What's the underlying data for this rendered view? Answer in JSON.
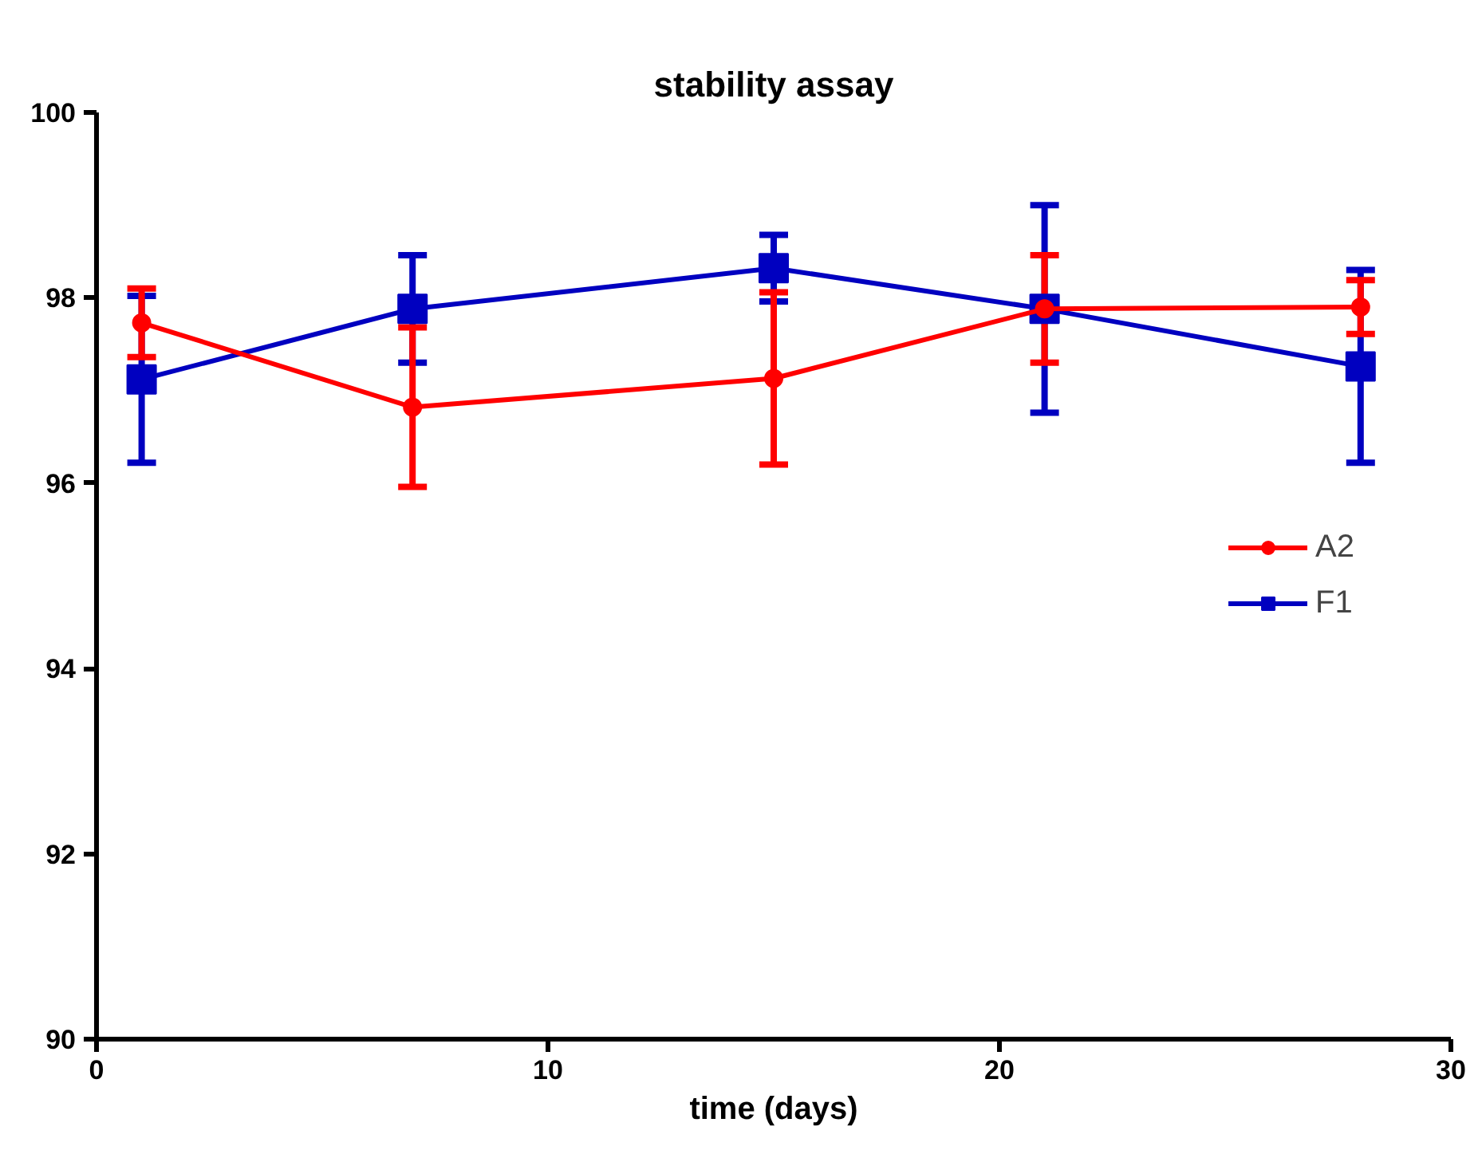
{
  "chart_data": {
    "type": "line",
    "title": "stability assay",
    "xlabel": "time (days)",
    "xlim": [
      0,
      30
    ],
    "xticks": [
      0,
      10,
      20,
      30
    ],
    "ylim": [
      90,
      100
    ],
    "yticks": [
      90,
      92,
      94,
      96,
      98,
      100
    ],
    "grid": false,
    "legend": "right",
    "line_style": "solid",
    "series": [
      {
        "name": "A2",
        "color": "#ff0000",
        "marker": "circle",
        "x": [
          1,
          7,
          15,
          21,
          28
        ],
        "values": [
          97.73,
          96.82,
          97.13,
          97.88,
          97.9
        ],
        "errors": [
          0.37,
          0.86,
          0.93,
          0.58,
          0.29
        ]
      },
      {
        "name": "F1",
        "color": "#0000c0",
        "marker": "square",
        "x": [
          1,
          7,
          15,
          21,
          28
        ],
        "values": [
          97.12,
          97.88,
          98.32,
          97.88,
          97.26
        ],
        "errors": [
          0.9,
          0.58,
          0.36,
          1.12,
          1.04
        ]
      }
    ]
  }
}
